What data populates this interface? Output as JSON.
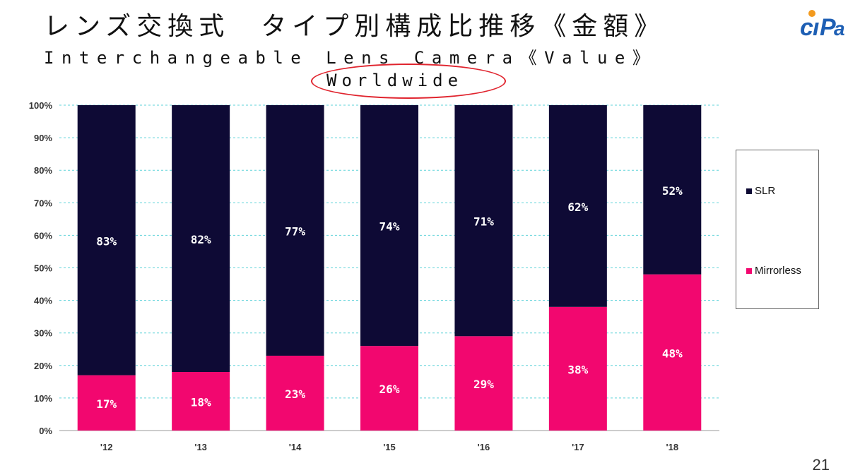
{
  "header": {
    "title_jp": "レンズ交換式　タイプ別構成比推移《金額》",
    "title_en": "Interchangeable Lens Camera《Value》",
    "subtitle": "Worldwide",
    "logo_text": "CIPA"
  },
  "page_number": "21",
  "colors": {
    "slr": "#0e0a35",
    "mirrorless": "#f2076f",
    "grid": "#5fd3d9",
    "annotation_circle": "#e0242e"
  },
  "chart_data": {
    "type": "bar",
    "stacked": true,
    "title": "",
    "xlabel": "",
    "ylabel": "",
    "ylim": [
      0,
      100
    ],
    "yticks": [
      "0%",
      "10%",
      "20%",
      "30%",
      "40%",
      "50%",
      "60%",
      "70%",
      "80%",
      "90%",
      "100%"
    ],
    "categories": [
      "'12",
      "'13",
      "'14",
      "'15",
      "'16",
      "'17",
      "'18"
    ],
    "series": [
      {
        "name": "Mirrorless",
        "values": [
          17,
          18,
          23,
          26,
          29,
          38,
          48
        ],
        "labels": [
          "17%",
          "18%",
          "23%",
          "26%",
          "29%",
          "38%",
          "48%"
        ]
      },
      {
        "name": "SLR",
        "values": [
          83,
          82,
          77,
          74,
          71,
          62,
          52
        ],
        "labels": [
          "83%",
          "82%",
          "77%",
          "74%",
          "71%",
          "62%",
          "52%"
        ]
      }
    ],
    "grid": true,
    "legend_position": "right"
  }
}
